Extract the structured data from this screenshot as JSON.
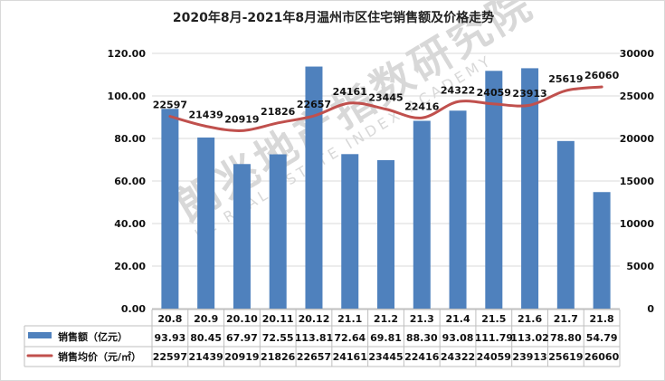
{
  "chart_data": {
    "type": "bar",
    "title": "2020年8月-2021年8月温州市区住宅销售额及价格走势",
    "categories": [
      "20.8",
      "20.9",
      "20.10",
      "20.11",
      "20.12",
      "21.1",
      "21.2",
      "21.3",
      "21.4",
      "21.5",
      "21.6",
      "21.7",
      "21.8"
    ],
    "left_axis": {
      "min": 0,
      "max": 120,
      "ticks": [
        "0.00",
        "20.00",
        "40.00",
        "60.00",
        "80.00",
        "100.00",
        "120.00"
      ]
    },
    "right_axis": {
      "min": 0,
      "max": 30000,
      "ticks": [
        "0",
        "5000",
        "10000",
        "15000",
        "20000",
        "25000",
        "30000"
      ]
    },
    "grid": true,
    "series": [
      {
        "name": "销售额（亿元）",
        "type": "bar",
        "axis": "left",
        "color": "#4f81bd",
        "values": [
          93.93,
          80.45,
          67.97,
          72.55,
          113.81,
          72.64,
          69.81,
          88.3,
          93.08,
          111.79,
          113.02,
          78.8,
          54.79
        ],
        "labels": [
          "93.93",
          "80.45",
          "67.97",
          "72.55",
          "113.81",
          "72.64",
          "69.81",
          "88.30",
          "93.08",
          "111.79",
          "113.02",
          "78.80",
          "54.79"
        ]
      },
      {
        "name": "销售均价（元/㎡）",
        "type": "line",
        "axis": "right",
        "color": "#c0504d",
        "values": [
          22597,
          21439,
          20919,
          21826,
          22657,
          24161,
          23445,
          22416,
          24322,
          24059,
          23913,
          25619,
          26060
        ],
        "labels": [
          "22597",
          "21439",
          "20919",
          "21826",
          "22657",
          "24161",
          "23445",
          "22416",
          "24322",
          "24059",
          "23913",
          "25619",
          "26060"
        ]
      }
    ]
  },
  "watermark": {
    "main": "朗兆地产指数研究院",
    "sub": "LZ REAL ESTATE INDEX ACADEMY"
  },
  "colors": {
    "bar": "#4f81bd",
    "line": "#c0504d",
    "grid": "#d9d9d9"
  }
}
